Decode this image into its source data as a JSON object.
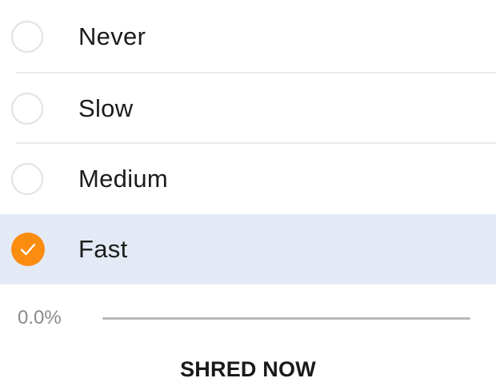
{
  "speed_options": [
    {
      "label": "Never",
      "selected": false
    },
    {
      "label": "Slow",
      "selected": false
    },
    {
      "label": "Medium",
      "selected": false
    },
    {
      "label": "Fast",
      "selected": true
    }
  ],
  "progress": {
    "text": "0.0%",
    "fraction": 0.0
  },
  "action_button": {
    "label": "SHRED NOW"
  },
  "colors": {
    "accent": "#fa8c0f",
    "selected_row": "#e3eaf5"
  }
}
